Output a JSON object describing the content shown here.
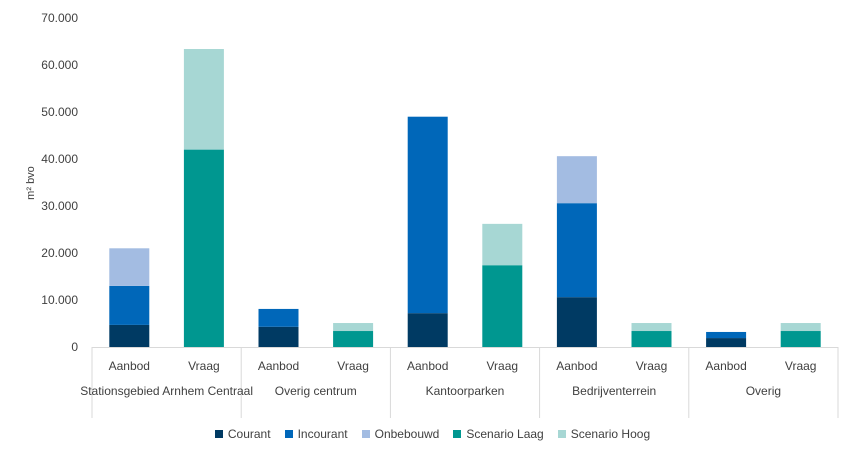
{
  "chart_data": {
    "type": "bar",
    "stacked": true,
    "ylabel": "m² bvo",
    "ylim": [
      0,
      70000
    ],
    "yticks": [
      "0",
      "10.000",
      "20.000",
      "30.000",
      "40.000",
      "50.000",
      "60.000",
      "70.000"
    ],
    "grid": false,
    "legend_position": "bottom",
    "groups": [
      {
        "label": "Stationsgebied Arnhem Centraal",
        "bars": [
          {
            "label": "Aanbod",
            "values": {
              "Courant": 4700,
              "Incourant": 8300,
              "Onbebouwd": 8000
            }
          },
          {
            "label": "Vraag",
            "values": {
              "Scenario Laag": 42000,
              "Scenario Hoog": 21400
            }
          }
        ]
      },
      {
        "label": "Overig centrum",
        "bars": [
          {
            "label": "Aanbod",
            "values": {
              "Courant": 4300,
              "Incourant": 3800
            }
          },
          {
            "label": "Vraag",
            "values": {
              "Scenario Laag": 3400,
              "Scenario Hoog": 1700
            }
          }
        ]
      },
      {
        "label": "Kantoorparken",
        "bars": [
          {
            "label": "Aanbod",
            "values": {
              "Courant": 7200,
              "Incourant": 41800
            }
          },
          {
            "label": "Vraag",
            "values": {
              "Scenario Laag": 17400,
              "Scenario Hoog": 8800
            }
          }
        ]
      },
      {
        "label": "Bedrijventerrein",
        "bars": [
          {
            "label": "Aanbod",
            "values": {
              "Courant": 10600,
              "Incourant": 20000,
              "Onbebouwd": 10000
            }
          },
          {
            "label": "Vraag",
            "values": {
              "Scenario Laag": 3400,
              "Scenario Hoog": 1700
            }
          }
        ]
      },
      {
        "label": "Overig",
        "bars": [
          {
            "label": "Aanbod",
            "values": {
              "Courant": 1900,
              "Incourant": 1300
            }
          },
          {
            "label": "Vraag",
            "values": {
              "Scenario Laag": 3400,
              "Scenario Hoog": 1700
            }
          }
        ]
      }
    ],
    "series": [
      {
        "name": "Courant",
        "color": "#003A63"
      },
      {
        "name": "Incourant",
        "color": "#0067B9"
      },
      {
        "name": "Onbebouwd",
        "color": "#A3BCE2"
      },
      {
        "name": "Scenario Laag",
        "color": "#009790"
      },
      {
        "name": "Scenario Hoog",
        "color": "#A7D7D4"
      }
    ]
  }
}
